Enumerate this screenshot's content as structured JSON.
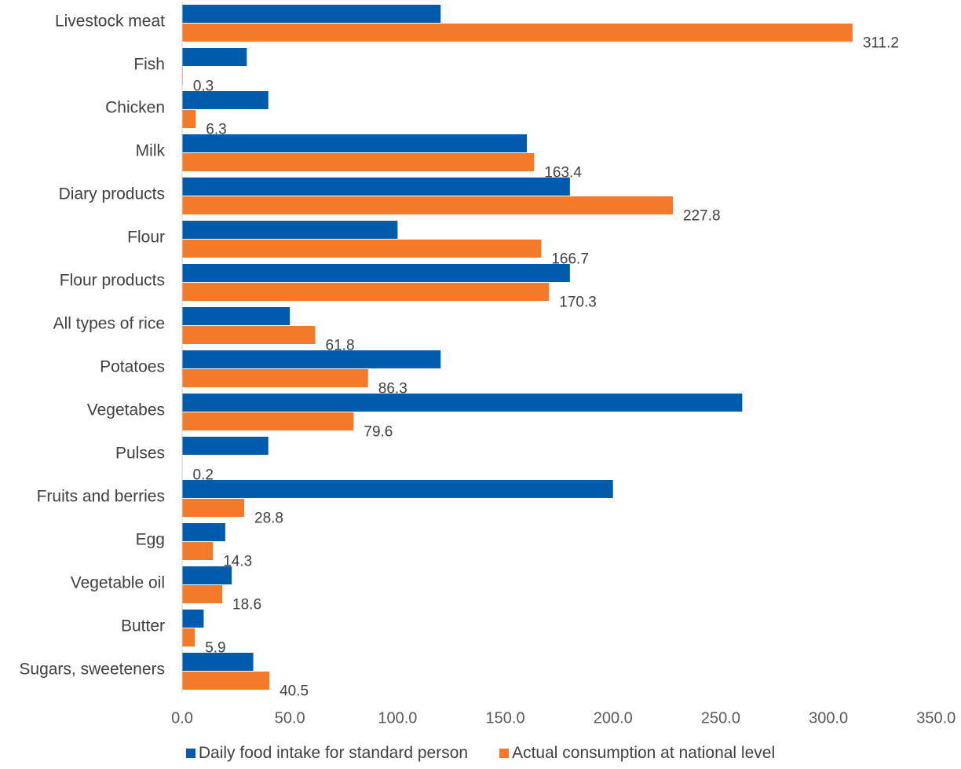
{
  "chart_data": {
    "type": "bar",
    "orientation": "horizontal",
    "categories": [
      "Livestock meat",
      "Fish",
      "Chicken",
      "Milk",
      "Diary products",
      "Flour",
      "Flour products",
      "All types of rice",
      "Potatoes",
      "Vegetabes",
      "Pulses",
      "Fruits and berries",
      "Egg",
      "Vegetable oil",
      "Butter",
      "Sugars, sweeteners"
    ],
    "series": [
      {
        "name": "Daily food intake for standard person",
        "color": "#005bac",
        "values": [
          120,
          30,
          40,
          160,
          180,
          100,
          180,
          50,
          120,
          260,
          40,
          200,
          20,
          23,
          10,
          33
        ]
      },
      {
        "name": "Actual consumption at national level",
        "color": "#f47a2a",
        "values": [
          311.2,
          0.3,
          6.3,
          163.4,
          227.8,
          166.7,
          170.3,
          61.8,
          86.3,
          79.6,
          0.2,
          28.8,
          14.3,
          18.6,
          5.9,
          40.5
        ],
        "data_labels": [
          "311.2",
          "0.3",
          "6.3",
          "163.4",
          "227.8",
          "166.7",
          "170.3",
          "61.8",
          "86.3",
          "79.6",
          "0.2",
          "28.8",
          "14.3",
          "18.6",
          "5.9",
          "40.5"
        ]
      }
    ],
    "xlim": [
      0,
      350
    ],
    "xticks": [
      "0.0",
      "50.0",
      "100.0",
      "150.0",
      "200.0",
      "250.0",
      "300.0",
      "350.0"
    ],
    "title": "",
    "xlabel": "",
    "ylabel": "",
    "grid": false,
    "legend": "bottom"
  }
}
